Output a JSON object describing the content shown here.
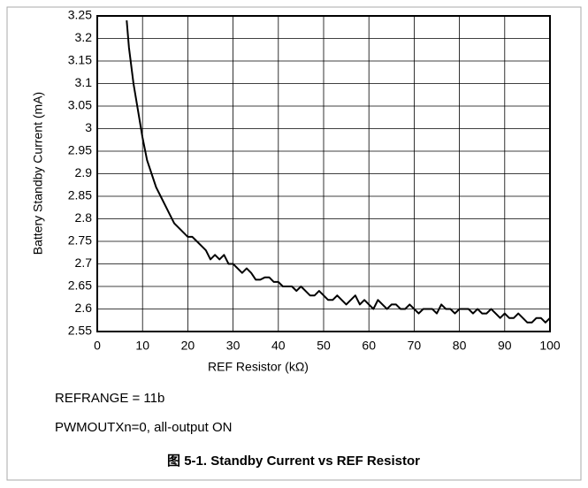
{
  "chart_data": {
    "type": "line",
    "xlabel": "REF Resistor (kΩ)",
    "ylabel": "Battery Standby Current (mA)",
    "notes": [
      "REFRANGE = 11b",
      "PWMOUTXn=0, all-output ON"
    ],
    "caption": "图 5-1. Standby Current vs REF Resistor",
    "color": "#000000",
    "grid": true,
    "x": [
      6.5,
      7,
      8,
      9,
      10,
      11,
      12,
      13,
      14,
      15,
      16,
      17,
      18,
      19,
      20,
      21,
      22,
      23,
      24,
      25,
      26,
      27,
      28,
      29,
      30,
      31,
      32,
      33,
      34,
      35,
      36,
      37,
      38,
      39,
      40,
      41,
      42,
      43,
      44,
      45,
      46,
      47,
      48,
      49,
      50,
      51,
      52,
      53,
      54,
      55,
      56,
      57,
      58,
      59,
      60,
      61,
      62,
      63,
      64,
      65,
      66,
      67,
      68,
      69,
      70,
      71,
      72,
      73,
      74,
      75,
      76,
      77,
      78,
      79,
      80,
      81,
      82,
      83,
      84,
      85,
      86,
      87,
      88,
      89,
      90,
      91,
      92,
      93,
      94,
      95,
      96,
      97,
      98,
      99,
      100
    ],
    "values": [
      3.24,
      3.18,
      3.1,
      3.04,
      2.98,
      2.93,
      2.9,
      2.87,
      2.85,
      2.83,
      2.81,
      2.79,
      2.78,
      2.77,
      2.76,
      2.76,
      2.75,
      2.74,
      2.73,
      2.71,
      2.72,
      2.71,
      2.72,
      2.7,
      2.7,
      2.69,
      2.68,
      2.69,
      2.68,
      2.665,
      2.665,
      2.67,
      2.67,
      2.66,
      2.66,
      2.65,
      2.65,
      2.65,
      2.64,
      2.65,
      2.64,
      2.63,
      2.63,
      2.64,
      2.63,
      2.62,
      2.62,
      2.63,
      2.62,
      2.61,
      2.62,
      2.63,
      2.61,
      2.62,
      2.61,
      2.6,
      2.62,
      2.61,
      2.6,
      2.61,
      2.61,
      2.6,
      2.6,
      2.61,
      2.6,
      2.59,
      2.6,
      2.6,
      2.6,
      2.59,
      2.61,
      2.6,
      2.6,
      2.59,
      2.6,
      2.6,
      2.6,
      2.59,
      2.6,
      2.59,
      2.59,
      2.6,
      2.59,
      2.58,
      2.59,
      2.58,
      2.58,
      2.59,
      2.58,
      2.57,
      2.57,
      2.58,
      2.58,
      2.57,
      2.58
    ],
    "xlim": [
      0,
      100
    ],
    "xticks": [
      0,
      10,
      20,
      30,
      40,
      50,
      60,
      70,
      80,
      90,
      100
    ],
    "ylim": [
      2.55,
      3.25
    ],
    "yticks": [
      2.55,
      2.6,
      2.65,
      2.7,
      2.75,
      2.8,
      2.85,
      2.9,
      2.95,
      3,
      3.05,
      3.1,
      3.15,
      3.2,
      3.25
    ]
  }
}
